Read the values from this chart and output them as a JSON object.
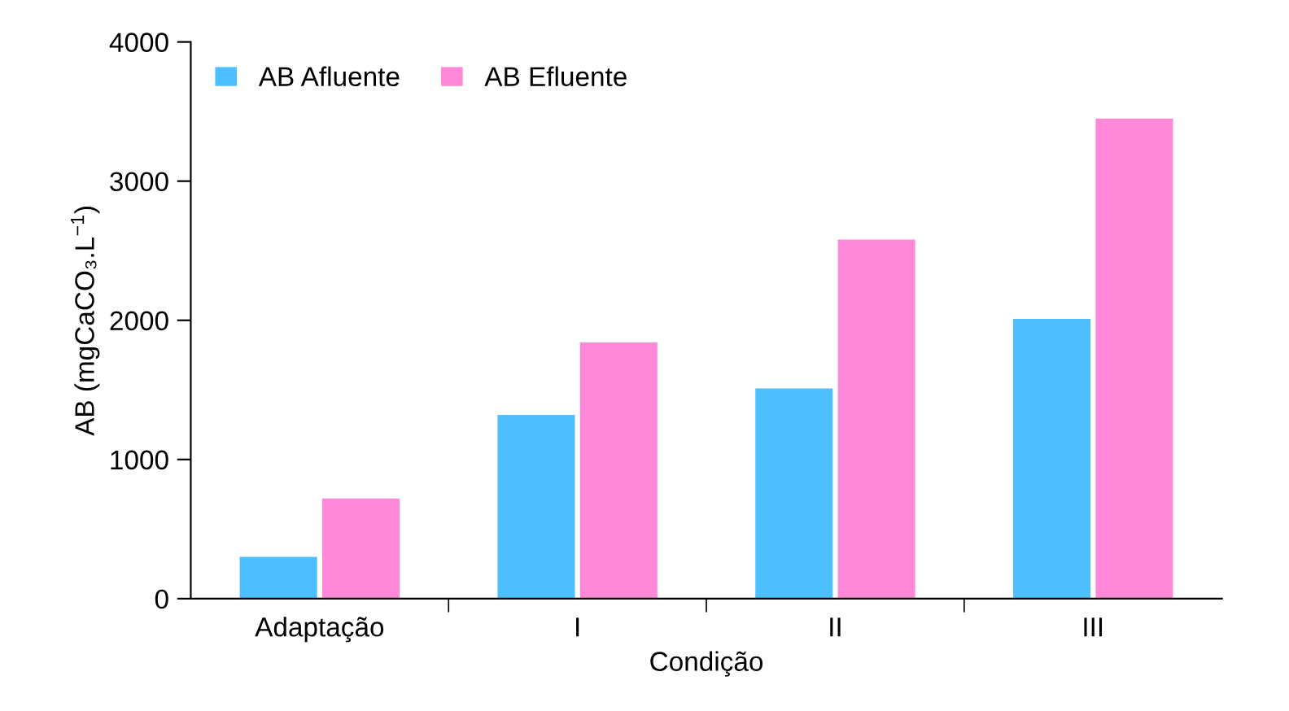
{
  "chart_data": {
    "type": "bar",
    "xlabel": "Condição",
    "ylabel": "AB (mgCaCO₃.L$^{−1}$)",
    "categories": [
      "Adaptação",
      "I",
      "II",
      "III"
    ],
    "series": [
      {
        "name": "AB Afluente",
        "color": "#4dbfff",
        "values": [
          300,
          1320,
          1510,
          2010
        ]
      },
      {
        "name": "AB Efluente",
        "color": "#ff88d8",
        "values": [
          720,
          1840,
          2580,
          3450
        ]
      }
    ],
    "ylim": [
      0,
      4000
    ],
    "yticks": [
      0,
      1000,
      2000,
      3000,
      4000
    ],
    "grid": false,
    "legend": "top left"
  }
}
